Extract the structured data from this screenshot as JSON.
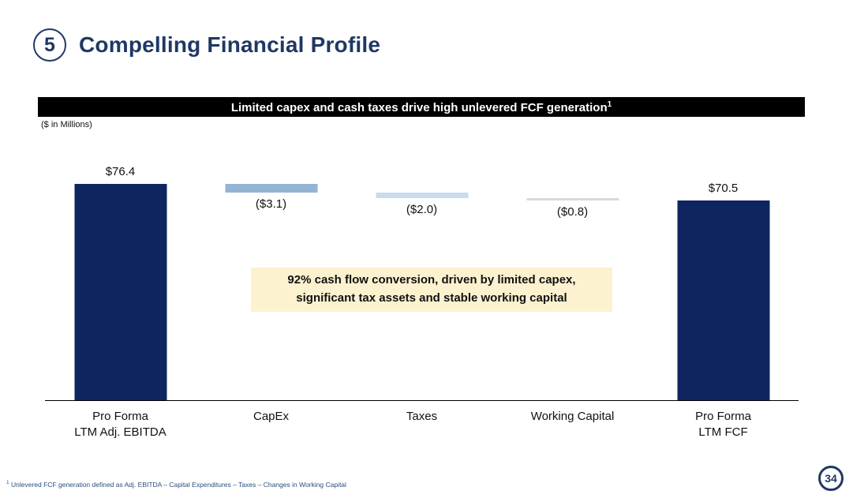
{
  "slide": {
    "number_badge": "5",
    "title": "Compelling Financial Profile",
    "page_number": "34"
  },
  "banner": {
    "text": "Limited capex and cash taxes drive high unlevered FCF generation",
    "superscript": "1"
  },
  "units_label": "($ in Millions)",
  "callout": {
    "line1": "92% cash flow conversion, driven by limited capex,",
    "line2": "significant tax assets and stable working capital"
  },
  "footnote": {
    "superscript": "1",
    "text": "Unlevered FCF generation defined as Adj. EBITDA – Capital Expenditures – Taxes – Changes in Working Capital"
  },
  "colors": {
    "navy": "#0F2560",
    "title_navy": "#1F3864",
    "capex_blue": "#92B5D3",
    "taxes_blue": "#C9DCEE",
    "working_capital_gray": "#D9D9D9",
    "banner_bg": "#000000",
    "banner_text": "#FFFFFF",
    "callout_bg": "#FCF2CF",
    "footnote_blue": "#2E4C7E",
    "axis_line": "#000000"
  },
  "chart_data": {
    "type": "bar",
    "subtype": "waterfall",
    "title": "Limited capex and cash taxes drive high unlevered FCF generation",
    "units": "$ in Millions",
    "ylim": [
      0,
      76.4
    ],
    "grid": false,
    "legend": false,
    "categories": [
      "Pro Forma\nLTM Adj. EBITDA",
      "CapEx",
      "Taxes",
      "Working Capital",
      "Pro Forma\nLTM FCF"
    ],
    "values": [
      76.4,
      -3.1,
      -2.0,
      -0.8,
      70.5
    ],
    "bars": [
      {
        "id": "ebitda",
        "category": "Pro Forma\nLTM Adj. EBITDA",
        "value": 76.4,
        "kind": "total",
        "label": "$76.4",
        "color": "#0F2560",
        "label_position": "above"
      },
      {
        "id": "capex",
        "category": "CapEx",
        "value": -3.1,
        "kind": "delta",
        "label": "($3.1)",
        "color": "#92B5D3",
        "label_position": "below"
      },
      {
        "id": "taxes",
        "category": "Taxes",
        "value": -2.0,
        "kind": "delta",
        "label": "($2.0)",
        "color": "#C9DCEE",
        "label_position": "below"
      },
      {
        "id": "working-capital",
        "category": "Working Capital",
        "value": -0.8,
        "kind": "delta",
        "label": "($0.8)",
        "color": "#D9D9D9",
        "label_position": "below"
      },
      {
        "id": "fcf",
        "category": "Pro Forma\nLTM FCF",
        "value": 70.5,
        "kind": "total",
        "label": "$70.5",
        "color": "#0F2560",
        "label_position": "above"
      }
    ]
  }
}
